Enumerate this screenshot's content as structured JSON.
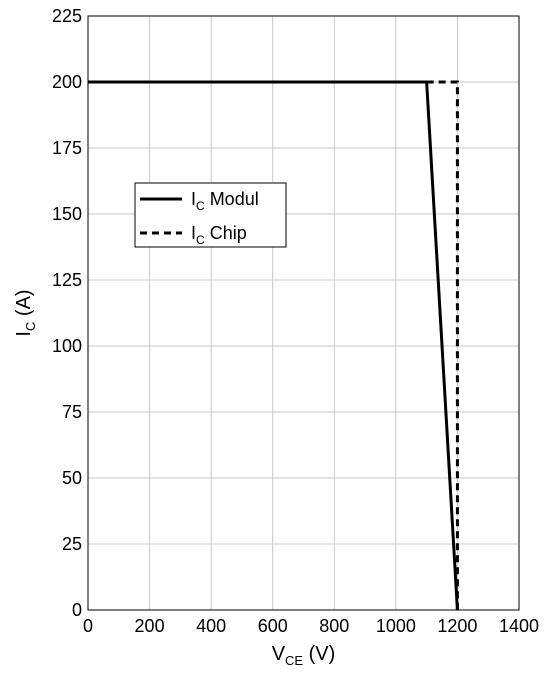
{
  "chart_data": {
    "type": "line",
    "xlabel": {
      "main": "V",
      "sub": "CE",
      "unit": " (V)"
    },
    "ylabel": {
      "main": "I",
      "sub": "C",
      "unit": " (A)"
    },
    "xlim": [
      0,
      1400
    ],
    "ylim": [
      0,
      225
    ],
    "xticks": [
      "0",
      "200",
      "400",
      "600",
      "800",
      "1000",
      "1200",
      "1400"
    ],
    "yticks": [
      "0",
      "25",
      "50",
      "75",
      "100",
      "125",
      "150",
      "175",
      "200",
      "225"
    ],
    "grid": true,
    "legend": {
      "position": "center-left"
    },
    "series": [
      {
        "name_main": "I",
        "name_sub": "C",
        "name_rest": " Modul",
        "style": "solid",
        "points": [
          [
            0,
            200
          ],
          [
            1100,
            200
          ],
          [
            1200,
            0
          ]
        ]
      },
      {
        "name_main": "I",
        "name_sub": "C",
        "name_rest": " Chip",
        "style": "dashed",
        "points": [
          [
            1100,
            200
          ],
          [
            1200,
            200
          ],
          [
            1200,
            0
          ]
        ]
      }
    ]
  }
}
